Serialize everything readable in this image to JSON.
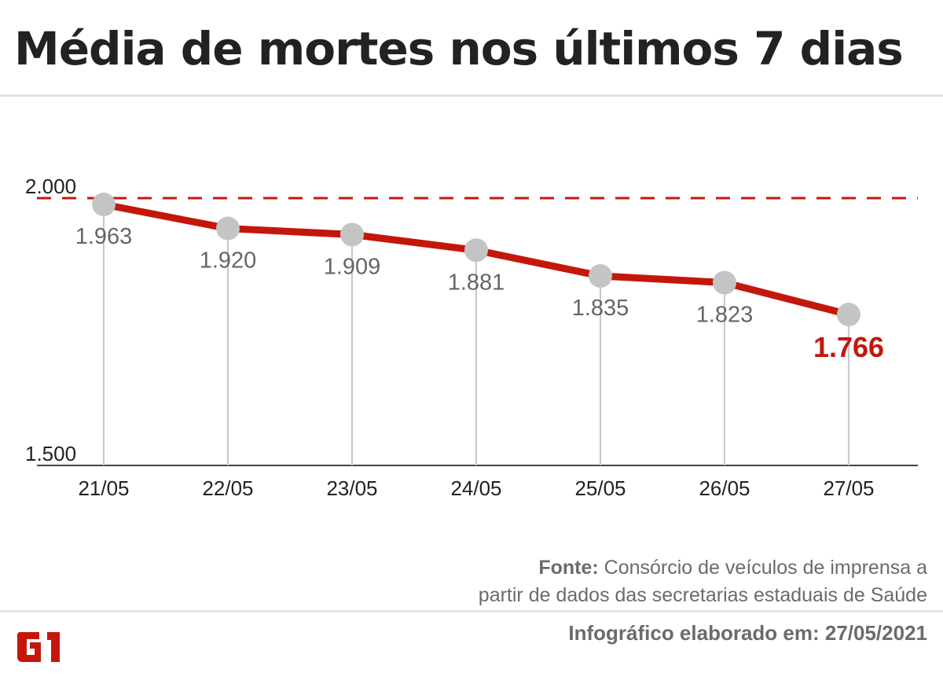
{
  "title": "Média de mortes nos últimos 7 dias",
  "chart_data": {
    "type": "line",
    "title": "Média de mortes nos últimos 7 dias",
    "categories": [
      "21/05",
      "22/05",
      "23/05",
      "24/05",
      "25/05",
      "26/05",
      "27/05"
    ],
    "values": [
      1963,
      1920,
      1909,
      1881,
      1835,
      1823,
      1766
    ],
    "data_labels": [
      "1.963",
      "1.920",
      "1.909",
      "1.881",
      "1.835",
      "1.823",
      "1.766"
    ],
    "y_tick_labels": [
      "2.000",
      "1.500"
    ],
    "ylim": [
      1500,
      2000
    ],
    "reference_line": {
      "value": 2000,
      "style": "dashed",
      "color": "#c4170c"
    },
    "line_color": "#c4170c",
    "marker_color": "#c4c4c4",
    "highlight_label_color": "#c4170c",
    "grid": false
  },
  "source": {
    "label": "Fonte:",
    "text_line1": " Consórcio de veículos de imprensa a",
    "text_line2": "partir de dados das secretarias estaduais de Saúde"
  },
  "footer": {
    "made": "Infográfico elaborado em: 27/05/2021",
    "logo": "G1"
  }
}
